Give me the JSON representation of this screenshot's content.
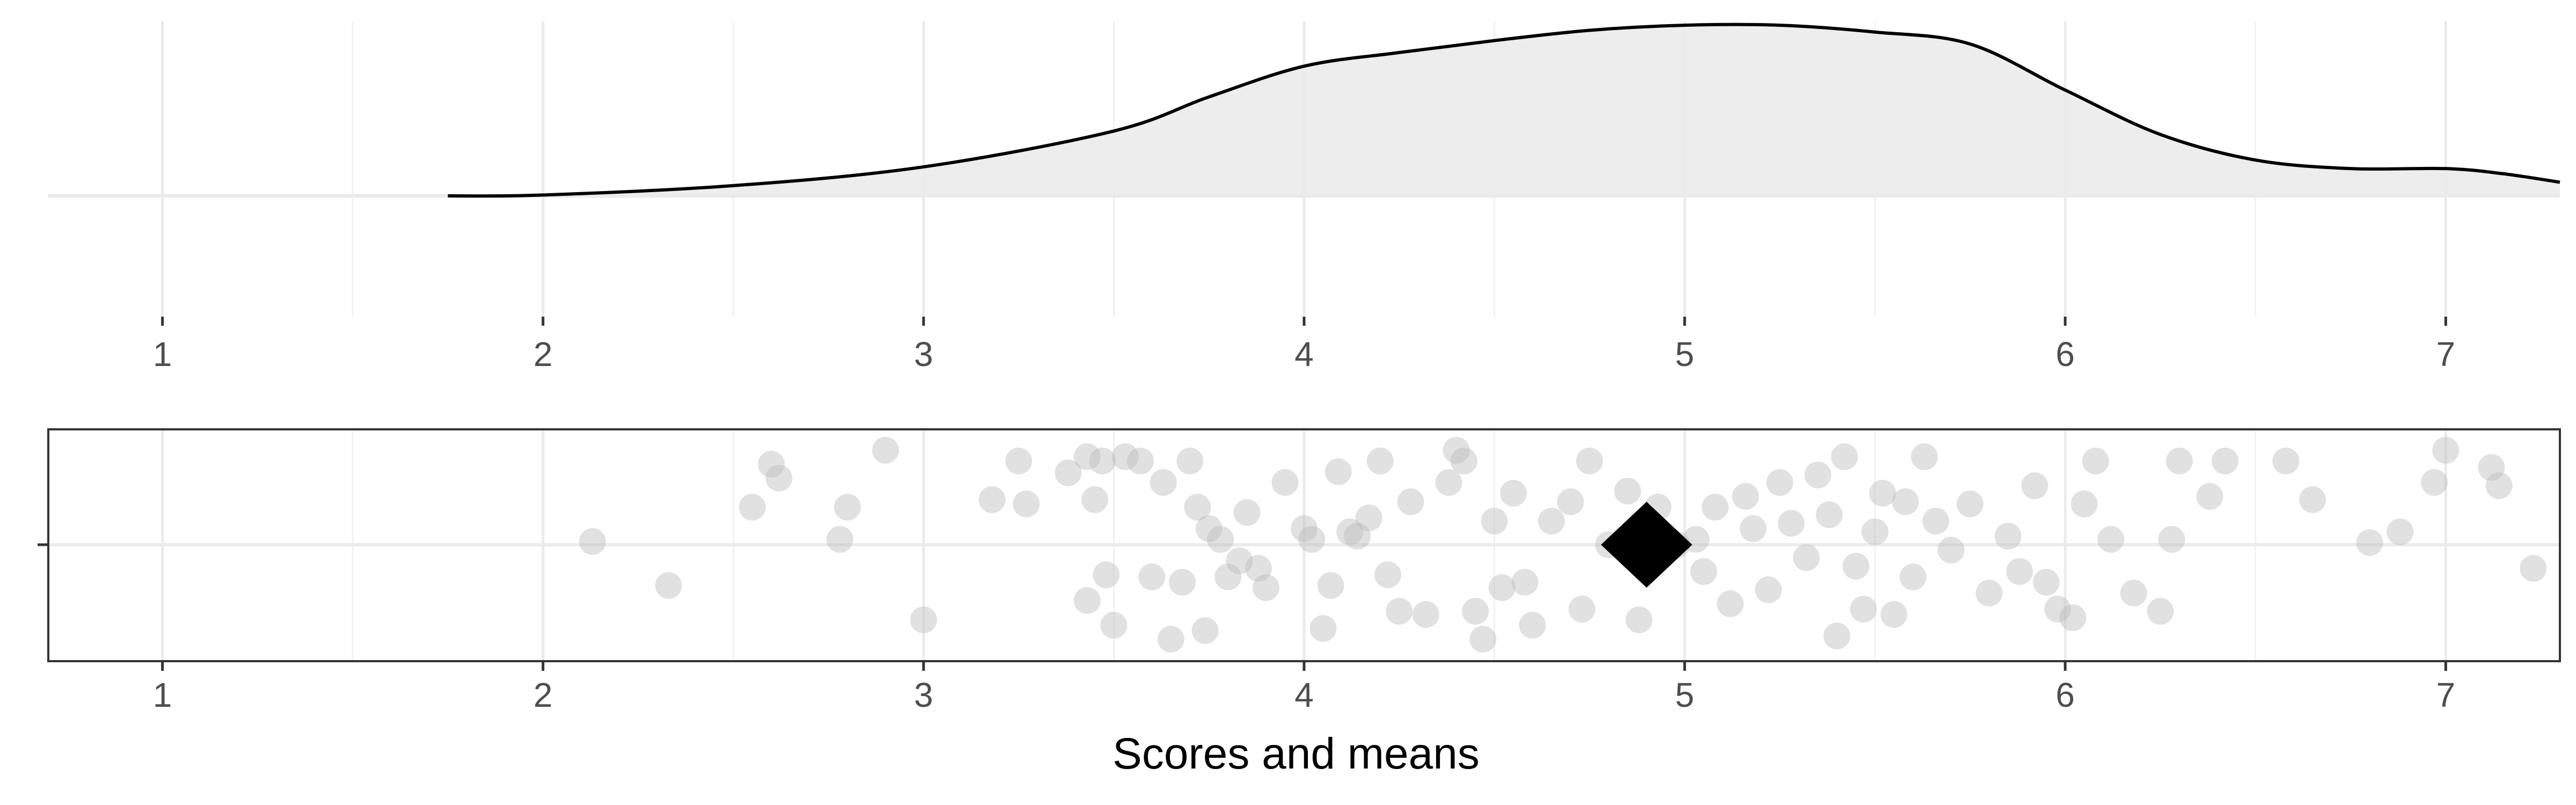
{
  "chart_data": [
    {
      "type": "area",
      "panel": "density",
      "xlim": [
        0.7,
        7.3
      ],
      "x_ticks": [
        1,
        2,
        3,
        4,
        5,
        6,
        7
      ],
      "grid": true,
      "fill_color": "#ebebeb",
      "line_color": "#000000",
      "density": [
        {
          "x": 1.75,
          "y": 0.0
        },
        {
          "x": 2.0,
          "y": 0.005
        },
        {
          "x": 2.5,
          "y": 0.06
        },
        {
          "x": 3.0,
          "y": 0.17
        },
        {
          "x": 3.5,
          "y": 0.38
        },
        {
          "x": 3.75,
          "y": 0.58
        },
        {
          "x": 4.0,
          "y": 0.76
        },
        {
          "x": 4.25,
          "y": 0.84
        },
        {
          "x": 4.5,
          "y": 0.91
        },
        {
          "x": 4.75,
          "y": 0.97
        },
        {
          "x": 5.0,
          "y": 1.0
        },
        {
          "x": 5.25,
          "y": 1.0
        },
        {
          "x": 5.5,
          "y": 0.96
        },
        {
          "x": 5.75,
          "y": 0.89
        },
        {
          "x": 6.0,
          "y": 0.62
        },
        {
          "x": 6.25,
          "y": 0.36
        },
        {
          "x": 6.5,
          "y": 0.21
        },
        {
          "x": 6.75,
          "y": 0.16
        },
        {
          "x": 7.0,
          "y": 0.16
        },
        {
          "x": 7.15,
          "y": 0.13
        },
        {
          "x": 7.3,
          "y": 0.08
        }
      ]
    },
    {
      "type": "scatter",
      "panel": "jitter",
      "xlabel": "Scores and means",
      "xlim": [
        0.7,
        7.3
      ],
      "ylim": [
        -1,
        1
      ],
      "x_ticks": [
        1,
        2,
        3,
        4,
        5,
        6,
        7
      ],
      "grid": true,
      "point_color": "#bdbdbd",
      "point_alpha": 0.45,
      "mean_color": "#000000",
      "mean": 4.9,
      "points": [
        [
          2.13,
          0.03
        ],
        [
          2.33,
          -0.38
        ],
        [
          2.55,
          0.35
        ],
        [
          2.6,
          0.75
        ],
        [
          2.62,
          0.62
        ],
        [
          2.78,
          0.05
        ],
        [
          2.8,
          0.35
        ],
        [
          2.9,
          0.88
        ],
        [
          3.0,
          -0.7
        ],
        [
          3.18,
          0.42
        ],
        [
          3.25,
          0.78
        ],
        [
          3.27,
          0.38
        ],
        [
          3.38,
          0.67
        ],
        [
          3.43,
          0.82
        ],
        [
          3.45,
          0.42
        ],
        [
          3.43,
          -0.52
        ],
        [
          3.48,
          -0.28
        ],
        [
          3.5,
          -0.75
        ],
        [
          3.47,
          0.78
        ],
        [
          3.53,
          0.82
        ],
        [
          3.57,
          0.78
        ],
        [
          3.6,
          -0.3
        ],
        [
          3.63,
          0.58
        ],
        [
          3.65,
          -0.88
        ],
        [
          3.68,
          -0.35
        ],
        [
          3.7,
          0.78
        ],
        [
          3.72,
          0.35
        ],
        [
          3.74,
          -0.8
        ],
        [
          3.75,
          0.15
        ],
        [
          3.78,
          0.05
        ],
        [
          3.8,
          -0.3
        ],
        [
          3.83,
          -0.15
        ],
        [
          3.85,
          0.3
        ],
        [
          3.88,
          -0.22
        ],
        [
          3.9,
          -0.4
        ],
        [
          3.95,
          0.58
        ],
        [
          4.0,
          0.15
        ],
        [
          4.02,
          0.05
        ],
        [
          4.05,
          -0.78
        ],
        [
          4.07,
          -0.38
        ],
        [
          4.09,
          0.68
        ],
        [
          4.12,
          0.12
        ],
        [
          4.14,
          0.08
        ],
        [
          4.17,
          0.25
        ],
        [
          4.2,
          0.78
        ],
        [
          4.22,
          -0.28
        ],
        [
          4.25,
          -0.62
        ],
        [
          4.28,
          0.4
        ],
        [
          4.32,
          -0.65
        ],
        [
          4.38,
          0.58
        ],
        [
          4.4,
          0.88
        ],
        [
          4.42,
          0.78
        ],
        [
          4.45,
          -0.62
        ],
        [
          4.47,
          -0.88
        ],
        [
          4.5,
          0.22
        ],
        [
          4.52,
          -0.4
        ],
        [
          4.55,
          0.48
        ],
        [
          4.58,
          -0.35
        ],
        [
          4.6,
          -0.75
        ],
        [
          4.65,
          0.22
        ],
        [
          4.7,
          0.4
        ],
        [
          4.73,
          -0.6
        ],
        [
          4.75,
          0.78
        ],
        [
          4.8,
          0.0
        ],
        [
          4.85,
          0.5
        ],
        [
          4.88,
          -0.7
        ],
        [
          4.93,
          0.35
        ],
        [
          4.98,
          0.0
        ],
        [
          5.03,
          0.05
        ],
        [
          5.05,
          -0.25
        ],
        [
          5.08,
          0.35
        ],
        [
          5.12,
          -0.55
        ],
        [
          5.16,
          0.45
        ],
        [
          5.18,
          0.15
        ],
        [
          5.22,
          -0.42
        ],
        [
          5.25,
          0.58
        ],
        [
          5.28,
          0.2
        ],
        [
          5.32,
          -0.12
        ],
        [
          5.35,
          0.65
        ],
        [
          5.38,
          0.28
        ],
        [
          5.4,
          -0.85
        ],
        [
          5.42,
          0.82
        ],
        [
          5.45,
          -0.2
        ],
        [
          5.47,
          -0.6
        ],
        [
          5.5,
          0.12
        ],
        [
          5.52,
          0.48
        ],
        [
          5.55,
          -0.65
        ],
        [
          5.58,
          0.4
        ],
        [
          5.6,
          -0.3
        ],
        [
          5.63,
          0.82
        ],
        [
          5.66,
          0.22
        ],
        [
          5.7,
          -0.05
        ],
        [
          5.75,
          0.38
        ],
        [
          5.8,
          -0.45
        ],
        [
          5.85,
          0.08
        ],
        [
          5.88,
          -0.25
        ],
        [
          5.92,
          0.55
        ],
        [
          5.95,
          -0.35
        ],
        [
          5.98,
          -0.6
        ],
        [
          6.02,
          -0.68
        ],
        [
          6.05,
          0.38
        ],
        [
          6.08,
          0.78
        ],
        [
          6.12,
          0.05
        ],
        [
          6.18,
          -0.45
        ],
        [
          6.25,
          -0.62
        ],
        [
          6.28,
          0.05
        ],
        [
          6.3,
          0.78
        ],
        [
          6.38,
          0.45
        ],
        [
          6.42,
          0.78
        ],
        [
          6.58,
          0.78
        ],
        [
          6.65,
          0.42
        ],
        [
          6.8,
          0.02
        ],
        [
          6.88,
          0.12
        ],
        [
          6.97,
          0.58
        ],
        [
          7.0,
          0.88
        ],
        [
          7.12,
          0.72
        ],
        [
          7.14,
          0.55
        ],
        [
          7.23,
          -0.22
        ]
      ]
    }
  ]
}
